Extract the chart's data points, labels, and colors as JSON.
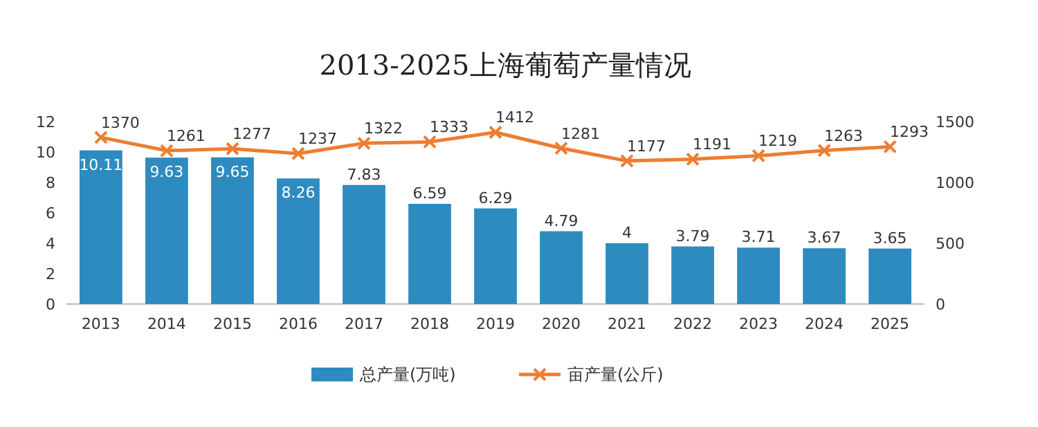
{
  "chart_data": {
    "type": "bar",
    "title": "2013-2025上海葡萄产量情况",
    "categories": [
      "2013",
      "2014",
      "2015",
      "2016",
      "2017",
      "2018",
      "2019",
      "2020",
      "2021",
      "2022",
      "2023",
      "2024",
      "2025"
    ],
    "series": [
      {
        "name": "总产量(万吨)",
        "color": "#2e8bc0",
        "values": [
          10.11,
          9.63,
          9.65,
          8.26,
          7.83,
          6.59,
          6.29,
          4.79,
          4,
          3.79,
          3.71,
          3.67,
          3.65
        ]
      },
      {
        "name": "亩产量(公斤)",
        "type": "line",
        "axis": "y2",
        "color": "#ed7d31",
        "marker": "cross",
        "values": [
          1370,
          1261,
          1277,
          1237,
          1322,
          1333,
          1412,
          1281,
          1177,
          1191,
          1219,
          1263,
          1293
        ]
      }
    ],
    "ylim": [
      0,
      12
    ],
    "yticks": [
      0,
      2,
      4,
      6,
      8,
      10,
      12
    ],
    "y2lim": [
      0,
      1500
    ],
    "y2ticks": [
      0,
      500,
      1000,
      1500
    ],
    "data_labels": true,
    "legend": "bottom",
    "grid": false
  }
}
